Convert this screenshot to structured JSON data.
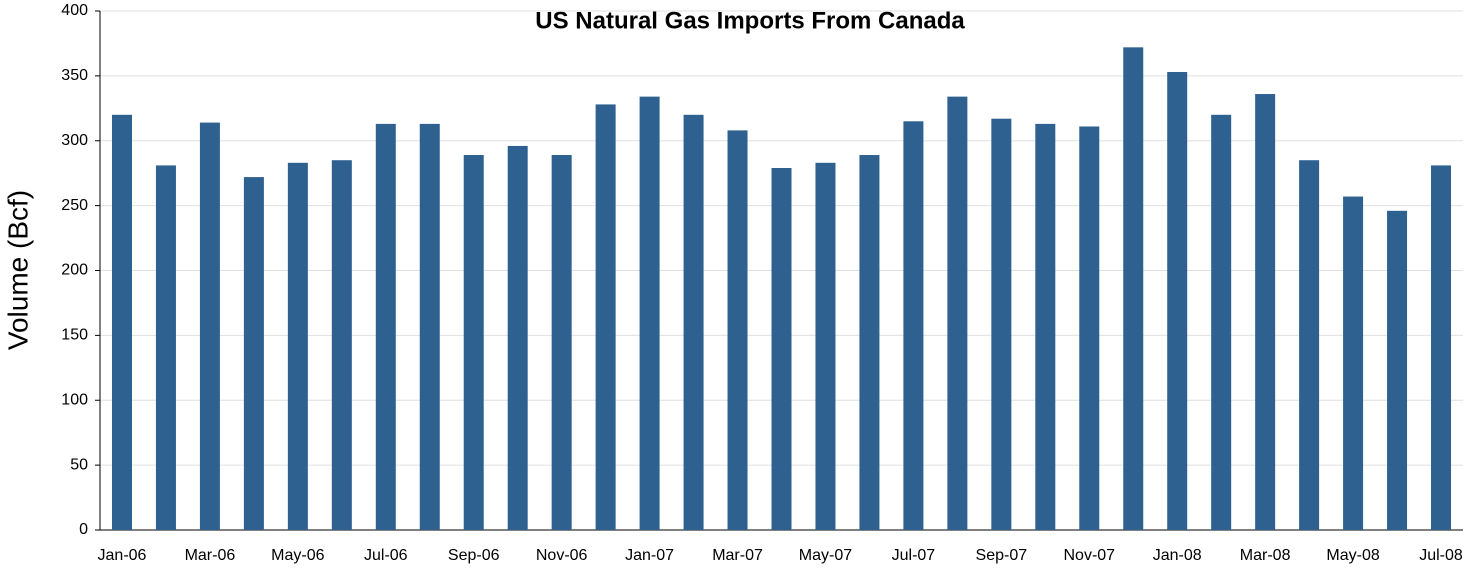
{
  "chart_data": {
    "type": "bar",
    "title": "US Natural Gas Imports From Canada",
    "y_label": "Volume  (Bcf)",
    "categories": [
      "Jan-06",
      null,
      "Mar-06",
      null,
      "May-06",
      null,
      "Jul-06",
      null,
      "Sep-06",
      null,
      "Nov-06",
      null,
      "Jan-07",
      null,
      "Mar-07",
      null,
      "May-07",
      null,
      "Jul-07",
      null,
      "Sep-07",
      null,
      "Nov-07",
      null,
      "Jan-08",
      null,
      "Mar-08",
      null,
      "May-08",
      null,
      "Jul-08"
    ],
    "values": [
      320,
      281,
      314,
      272,
      283,
      285,
      313,
      313,
      289,
      296,
      289,
      328,
      334,
      320,
      308,
      279,
      283,
      289,
      315,
      334,
      317,
      313,
      311,
      372,
      353,
      320,
      336,
      285,
      257,
      246,
      281
    ],
    "color": "#2e6190",
    "ylim": [
      0,
      400
    ],
    "yticks": [
      0,
      50,
      100,
      150,
      200,
      250,
      300,
      350,
      400
    ],
    "grid": true
  }
}
